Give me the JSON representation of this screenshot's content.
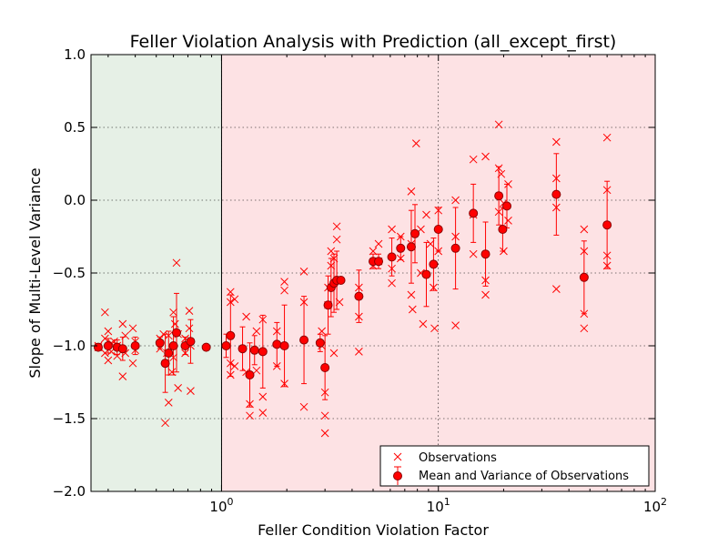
{
  "chart_data": {
    "type": "scatter",
    "title": "Feller Violation Analysis with Prediction (all_except_first)",
    "xlabel": "Feller Condition Violation Factor",
    "ylabel": "Slope of Multi-Level Variance",
    "xscale": "log",
    "xlim": [
      0.25,
      100
    ],
    "ylim": [
      -2.0,
      1.0
    ],
    "xticks": [
      {
        "value": 1,
        "label": "10^0"
      },
      {
        "value": 10,
        "label": "10^1"
      },
      {
        "value": 100,
        "label": "10^2"
      }
    ],
    "yticks": [
      {
        "value": 1.0,
        "label": "1.0"
      },
      {
        "value": 0.5,
        "label": "0.5"
      },
      {
        "value": 0.0,
        "label": "0.0"
      },
      {
        "value": -0.5,
        "label": "−0.5"
      },
      {
        "value": -1.0,
        "label": "−1.0"
      },
      {
        "value": -1.5,
        "label": "−1.5"
      },
      {
        "value": -2.0,
        "label": "−2.0"
      }
    ],
    "grid": true,
    "legend_position": "lower-right",
    "regions": [
      {
        "x_from": 0.25,
        "x_to": 1,
        "color": "#e6f0e6"
      },
      {
        "x_from": 1,
        "x_to": 100,
        "color": "#fde2e4"
      }
    ],
    "colors": {
      "marker": "#ff0000",
      "marker_edge": "#8b0000",
      "boundary": "#000000"
    },
    "series": [
      {
        "name": "Observations",
        "marker": "x",
        "points": [
          [
            0.27,
            -1.0
          ],
          [
            0.27,
            -1.01
          ],
          [
            0.29,
            -0.77
          ],
          [
            0.29,
            -0.95
          ],
          [
            0.29,
            -1.05
          ],
          [
            0.3,
            -0.9
          ],
          [
            0.3,
            -1.1
          ],
          [
            0.31,
            -0.98
          ],
          [
            0.31,
            -1.04
          ],
          [
            0.32,
            -0.97
          ],
          [
            0.33,
            -1.0
          ],
          [
            0.33,
            -1.07
          ],
          [
            0.35,
            -0.85
          ],
          [
            0.35,
            -1.21
          ],
          [
            0.36,
            -0.93
          ],
          [
            0.36,
            -1.05
          ],
          [
            0.39,
            -0.88
          ],
          [
            0.39,
            -1.12
          ],
          [
            0.4,
            -0.97
          ],
          [
            0.4,
            -1.03
          ],
          [
            0.52,
            -0.95
          ],
          [
            0.52,
            -1.02
          ],
          [
            0.54,
            -0.92
          ],
          [
            0.55,
            -1.53
          ],
          [
            0.56,
            -1.05
          ],
          [
            0.57,
            -1.39
          ],
          [
            0.57,
            -0.93
          ],
          [
            0.59,
            -1.18
          ],
          [
            0.6,
            -0.77
          ],
          [
            0.6,
            -1.08
          ],
          [
            0.61,
            -0.85
          ],
          [
            0.62,
            -0.43
          ],
          [
            0.63,
            -1.29
          ],
          [
            0.63,
            -0.92
          ],
          [
            0.68,
            -0.95
          ],
          [
            0.68,
            -1.05
          ],
          [
            0.71,
            -0.76
          ],
          [
            0.71,
            -0.88
          ],
          [
            0.72,
            -1.31
          ],
          [
            0.72,
            -1.0
          ],
          [
            1.1,
            -0.63
          ],
          [
            1.1,
            -0.7
          ],
          [
            1.1,
            -1.12
          ],
          [
            1.1,
            -1.2
          ],
          [
            1.15,
            -0.68
          ],
          [
            1.15,
            -1.14
          ],
          [
            1.3,
            -0.8
          ],
          [
            1.3,
            -1.18
          ],
          [
            1.35,
            -1.48
          ],
          [
            1.35,
            -1.4
          ],
          [
            1.45,
            -0.9
          ],
          [
            1.45,
            -1.17
          ],
          [
            1.55,
            -1.46
          ],
          [
            1.55,
            -0.82
          ],
          [
            1.55,
            -1.35
          ],
          [
            1.8,
            -0.9
          ],
          [
            1.8,
            -1.14
          ],
          [
            1.95,
            -0.56
          ],
          [
            1.95,
            -0.62
          ],
          [
            1.95,
            -1.26
          ],
          [
            2.4,
            -0.49
          ],
          [
            2.4,
            -1.42
          ],
          [
            2.4,
            -0.7
          ],
          [
            2.9,
            -0.9
          ],
          [
            2.9,
            -1.0
          ],
          [
            3.0,
            -1.6
          ],
          [
            3.0,
            -1.32
          ],
          [
            3.0,
            -1.48
          ],
          [
            3.1,
            -0.6
          ],
          [
            3.1,
            -0.72
          ],
          [
            3.2,
            -0.35
          ],
          [
            3.2,
            -0.45
          ],
          [
            3.3,
            -0.4
          ],
          [
            3.3,
            -1.05
          ],
          [
            3.4,
            -0.18
          ],
          [
            3.4,
            -0.27
          ],
          [
            3.5,
            -0.55
          ],
          [
            3.5,
            -0.7
          ],
          [
            4.3,
            -0.6
          ],
          [
            4.3,
            -0.8
          ],
          [
            4.3,
            -1.04
          ],
          [
            5.0,
            -0.35
          ],
          [
            5.0,
            -0.45
          ],
          [
            5.3,
            -0.3
          ],
          [
            5.3,
            -0.42
          ],
          [
            6.1,
            -0.2
          ],
          [
            6.1,
            -0.47
          ],
          [
            6.1,
            -0.57
          ],
          [
            6.7,
            -0.25
          ],
          [
            6.7,
            -0.4
          ],
          [
            7.5,
            0.06
          ],
          [
            7.5,
            -0.3
          ],
          [
            7.5,
            -0.65
          ],
          [
            7.6,
            -0.75
          ],
          [
            7.9,
            0.39
          ],
          [
            8.3,
            -0.2
          ],
          [
            8.3,
            -0.5
          ],
          [
            8.5,
            -0.85
          ],
          [
            8.8,
            -0.1
          ],
          [
            9.2,
            -0.3
          ],
          [
            9.5,
            -0.6
          ],
          [
            9.6,
            -0.88
          ],
          [
            10.0,
            -0.07
          ],
          [
            10.0,
            -0.35
          ],
          [
            12.0,
            0.0
          ],
          [
            12.0,
            -0.25
          ],
          [
            12.0,
            -0.86
          ],
          [
            14.5,
            0.28
          ],
          [
            14.5,
            -0.1
          ],
          [
            14.5,
            -0.37
          ],
          [
            16.5,
            0.3
          ],
          [
            16.5,
            -0.55
          ],
          [
            16.5,
            -0.65
          ],
          [
            19.0,
            0.52
          ],
          [
            19.0,
            0.22
          ],
          [
            19.0,
            -0.08
          ],
          [
            19.5,
            0.18
          ],
          [
            20.0,
            -0.02
          ],
          [
            20.0,
            -0.35
          ],
          [
            21.0,
            0.11
          ],
          [
            21.0,
            -0.14
          ],
          [
            35.0,
            0.4
          ],
          [
            35.0,
            0.15
          ],
          [
            35.0,
            -0.05
          ],
          [
            35.0,
            -0.61
          ],
          [
            47.0,
            -0.2
          ],
          [
            47.0,
            -0.35
          ],
          [
            47.0,
            -0.78
          ],
          [
            47.0,
            -0.88
          ],
          [
            60.0,
            0.43
          ],
          [
            60.0,
            0.07
          ],
          [
            60.0,
            -0.45
          ],
          [
            60.0,
            -0.38
          ]
        ]
      },
      {
        "name": "Mean and Variance of Observations",
        "marker": "o",
        "points": [
          {
            "x": 0.27,
            "y": -1.01,
            "err": 0.02
          },
          {
            "x": 0.3,
            "y": -1.0,
            "err": 0.05
          },
          {
            "x": 0.33,
            "y": -1.01,
            "err": 0.05
          },
          {
            "x": 0.35,
            "y": -1.02,
            "err": 0.08
          },
          {
            "x": 0.4,
            "y": -1.0,
            "err": 0.06
          },
          {
            "x": 0.52,
            "y": -0.98,
            "err": 0.04
          },
          {
            "x": 0.55,
            "y": -1.12,
            "err": 0.2
          },
          {
            "x": 0.57,
            "y": -1.05,
            "err": 0.15
          },
          {
            "x": 0.6,
            "y": -1.0,
            "err": 0.2
          },
          {
            "x": 0.62,
            "y": -0.91,
            "err": 0.27
          },
          {
            "x": 0.68,
            "y": -1.0,
            "err": 0.06
          },
          {
            "x": 0.72,
            "y": -0.97,
            "err": 0.15
          },
          {
            "x": 0.85,
            "y": -1.01,
            "err": 0.02
          },
          {
            "x": 1.05,
            "y": -1.0,
            "err": 0.08
          },
          {
            "x": 1.1,
            "y": -0.93,
            "err": 0.28
          },
          {
            "x": 1.25,
            "y": -1.02,
            "err": 0.15
          },
          {
            "x": 1.35,
            "y": -1.2,
            "err": 0.22
          },
          {
            "x": 1.42,
            "y": -1.03,
            "err": 0.1
          },
          {
            "x": 1.55,
            "y": -1.04,
            "err": 0.25
          },
          {
            "x": 1.8,
            "y": -0.99,
            "err": 0.15
          },
          {
            "x": 1.95,
            "y": -1.0,
            "err": 0.28
          },
          {
            "x": 2.4,
            "y": -0.96,
            "err": 0.3
          },
          {
            "x": 2.85,
            "y": -0.98,
            "err": 0.06
          },
          {
            "x": 3.0,
            "y": -1.15,
            "err": 0.22
          },
          {
            "x": 3.1,
            "y": -0.72,
            "err": 0.2
          },
          {
            "x": 3.2,
            "y": -0.6,
            "err": 0.2
          },
          {
            "x": 3.3,
            "y": -0.57,
            "err": 0.2
          },
          {
            "x": 3.4,
            "y": -0.55,
            "err": 0.2
          },
          {
            "x": 3.55,
            "y": -0.55,
            "err": 0.02
          },
          {
            "x": 4.3,
            "y": -0.66,
            "err": 0.18
          },
          {
            "x": 5.0,
            "y": -0.42,
            "err": 0.05
          },
          {
            "x": 5.3,
            "y": -0.42,
            "err": 0.05
          },
          {
            "x": 6.1,
            "y": -0.39,
            "err": 0.13
          },
          {
            "x": 6.7,
            "y": -0.33,
            "err": 0.08
          },
          {
            "x": 7.5,
            "y": -0.32,
            "err": 0.25
          },
          {
            "x": 7.8,
            "y": -0.23,
            "err": 0.2
          },
          {
            "x": 8.8,
            "y": -0.51,
            "err": 0.22
          },
          {
            "x": 9.5,
            "y": -0.44,
            "err": 0.18
          },
          {
            "x": 10.0,
            "y": -0.2,
            "err": 0.15
          },
          {
            "x": 12.0,
            "y": -0.33,
            "err": 0.28
          },
          {
            "x": 14.5,
            "y": -0.09,
            "err": 0.2
          },
          {
            "x": 16.5,
            "y": -0.37,
            "err": 0.22
          },
          {
            "x": 19.0,
            "y": 0.03,
            "err": 0.2
          },
          {
            "x": 19.8,
            "y": -0.2,
            "err": 0.15
          },
          {
            "x": 20.7,
            "y": -0.04,
            "err": 0.15
          },
          {
            "x": 35.0,
            "y": 0.04,
            "err": 0.28
          },
          {
            "x": 47.0,
            "y": -0.53,
            "err": 0.25
          },
          {
            "x": 60.0,
            "y": -0.17,
            "err": 0.3
          }
        ]
      }
    ]
  }
}
